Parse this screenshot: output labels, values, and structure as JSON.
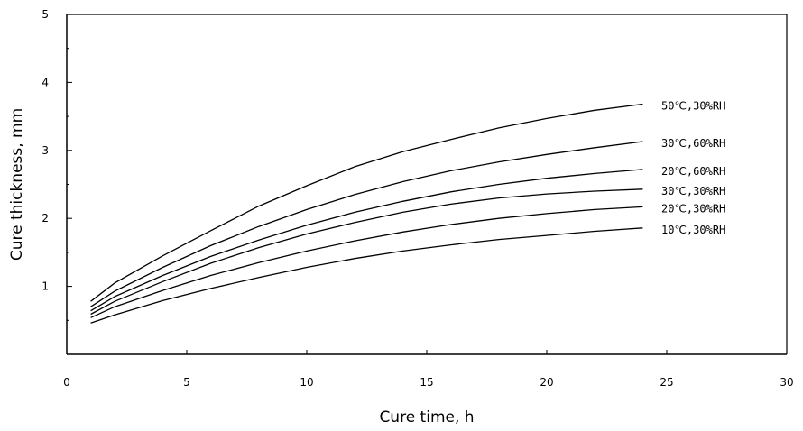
{
  "chart_data": {
    "type": "line",
    "title": "",
    "xlabel": "Cure time, h",
    "ylabel": "Cure thickness, mm",
    "xlim": [
      0,
      30
    ],
    "ylim": [
      0,
      5
    ],
    "xticks": [
      0,
      5,
      10,
      15,
      20,
      25,
      30
    ],
    "yticks": [
      1,
      2,
      3,
      4,
      5
    ],
    "grid": false,
    "legend": "inline labels at right end of each line",
    "x": [
      1,
      2,
      4,
      6,
      8,
      10,
      12,
      14,
      16,
      18,
      20,
      22,
      24
    ],
    "series": [
      {
        "name": "50℃,30%RH",
        "values": [
          0.78,
          1.05,
          1.45,
          1.82,
          2.18,
          2.48,
          2.76,
          2.98,
          3.16,
          3.33,
          3.47,
          3.59,
          3.68
        ]
      },
      {
        "name": "30℃,60%RH",
        "values": [
          0.7,
          0.93,
          1.28,
          1.6,
          1.88,
          2.13,
          2.35,
          2.54,
          2.7,
          2.83,
          2.94,
          3.04,
          3.13
        ]
      },
      {
        "name": "20℃,60%RH",
        "values": [
          0.64,
          0.85,
          1.16,
          1.44,
          1.68,
          1.9,
          2.09,
          2.25,
          2.39,
          2.5,
          2.59,
          2.66,
          2.72
        ]
      },
      {
        "name": "30℃,30%RH",
        "values": [
          0.59,
          0.78,
          1.07,
          1.34,
          1.57,
          1.77,
          1.94,
          2.09,
          2.21,
          2.3,
          2.36,
          2.4,
          2.43
        ]
      },
      {
        "name": "20℃,30%RH",
        "values": [
          0.54,
          0.7,
          0.94,
          1.16,
          1.35,
          1.52,
          1.67,
          1.8,
          1.91,
          2.0,
          2.07,
          2.13,
          2.17
        ]
      },
      {
        "name": "10℃,30%RH",
        "values": [
          0.46,
          0.58,
          0.79,
          0.97,
          1.13,
          1.28,
          1.41,
          1.52,
          1.61,
          1.69,
          1.75,
          1.81,
          1.86
        ]
      }
    ],
    "colors": {
      "line": "#000000",
      "axis": "#000000",
      "background": "#ffffff"
    }
  }
}
